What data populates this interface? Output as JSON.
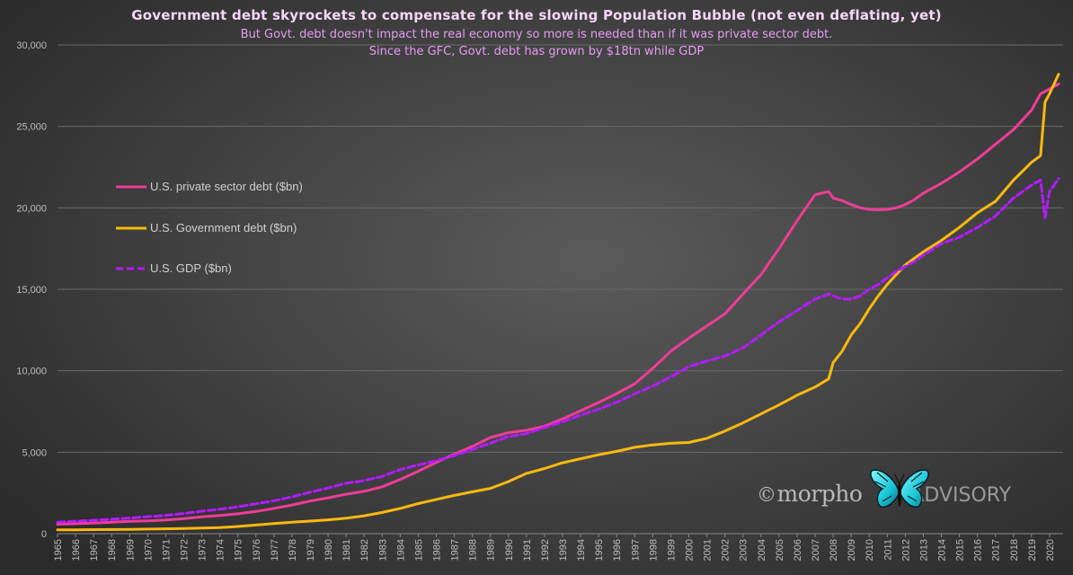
{
  "header": {
    "title": "Government debt skyrockets to compensate for the slowing Population Bubble (not even deflating, yet)",
    "subtitle_line1": "But Govt. debt doesn't impact the real economy so more is needed than if it was private sector debt.",
    "subtitle_line2": "Since the GFC, Govt. debt has grown by $18tn while GDP"
  },
  "watermark": {
    "copyright": "©",
    "brand_main": "morpho",
    "brand_suffix": "ADVISORY",
    "logo_icon": "butterfly-icon"
  },
  "colors": {
    "private_debt": "#ee3d97",
    "government_debt": "#f9b90f",
    "gdp": "#b41bff",
    "gridline": "#6a6a6a",
    "tick_text": "#bdbdbd"
  },
  "chart_data": {
    "type": "line",
    "title": "Government debt skyrockets to compensate for the slowing Population Bubble (not even deflating, yet)",
    "xlabel": "",
    "ylabel": "",
    "xlim": [
      1965,
      2020.75
    ],
    "ylim": [
      0,
      30000
    ],
    "y_ticks": [
      0,
      5000,
      10000,
      15000,
      20000,
      25000,
      30000
    ],
    "y_tick_labels": [
      "0",
      "5,000",
      "10,000",
      "15,000",
      "20,000",
      "25,000",
      "30,000"
    ],
    "x_tick_labels": [
      "1965",
      "1966",
      "1967",
      "1968",
      "1969",
      "1970",
      "1971",
      "1972",
      "1973",
      "1974",
      "1975",
      "1976",
      "1977",
      "1978",
      "1979",
      "1980",
      "1981",
      "1982",
      "1983",
      "1984",
      "1985",
      "1986",
      "1987",
      "1988",
      "1989",
      "1990",
      "1991",
      "1992",
      "1993",
      "1994",
      "1995",
      "1996",
      "1997",
      "1998",
      "1999",
      "2000",
      "2001",
      "2002",
      "2003",
      "2004",
      "2005",
      "2006",
      "2007",
      "2008",
      "2009",
      "2010",
      "2011",
      "2012",
      "2013",
      "2014",
      "2015",
      "2016",
      "2017",
      "2018",
      "2019",
      "2020"
    ],
    "grid": "horizontal",
    "legend_position": "left, upper-middle",
    "series": [
      {
        "name": "U.S. private sector debt ($bn)",
        "style": "solid",
        "x": [
          1965,
          1966,
          1967,
          1968,
          1969,
          1970,
          1971,
          1972,
          1973,
          1974,
          1975,
          1976,
          1977,
          1978,
          1979,
          1980,
          1981,
          1982,
          1983,
          1984,
          1985,
          1986,
          1987,
          1988,
          1989,
          1990,
          1991,
          1992,
          1993,
          1994,
          1995,
          1996,
          1997,
          1998,
          1999,
          2000,
          2001,
          2002,
          2003,
          2004,
          2005,
          2006,
          2007,
          2007.75,
          2008,
          2008.5,
          2009,
          2009.5,
          2010,
          2010.5,
          2011,
          2011.5,
          2012,
          2012.5,
          2013,
          2014,
          2015,
          2016,
          2017,
          2018,
          2019,
          2019.5,
          2020,
          2020.5
        ],
        "y": [
          580,
          610,
          650,
          700,
          760,
          790,
          840,
          920,
          1030,
          1120,
          1220,
          1360,
          1550,
          1760,
          2000,
          2200,
          2420,
          2600,
          2880,
          3330,
          3830,
          4380,
          4880,
          5360,
          5900,
          6200,
          6350,
          6600,
          7050,
          7550,
          8050,
          8600,
          9200,
          10150,
          11200,
          12000,
          12750,
          13500,
          14700,
          15900,
          17500,
          19200,
          20800,
          21000,
          20600,
          20450,
          20200,
          20000,
          19900,
          19880,
          19900,
          20000,
          20200,
          20500,
          20900,
          21500,
          22200,
          23000,
          23900,
          24800,
          26000,
          27000,
          27300,
          27600
        ]
      },
      {
        "name": "U.S. Government debt ($bn)",
        "style": "solid",
        "x": [
          1965,
          1966,
          1967,
          1968,
          1969,
          1970,
          1971,
          1972,
          1973,
          1974,
          1975,
          1976,
          1977,
          1978,
          1979,
          1980,
          1981,
          1982,
          1983,
          1984,
          1985,
          1986,
          1987,
          1988,
          1989,
          1990,
          1991,
          1992,
          1993,
          1994,
          1995,
          1996,
          1997,
          1998,
          1999,
          2000,
          2001,
          2002,
          2003,
          2004,
          2005,
          2006,
          2007,
          2007.75,
          2008,
          2008.5,
          2009,
          2009.5,
          2010,
          2010.5,
          2011,
          2011.5,
          2012,
          2012.5,
          2013,
          2014,
          2015,
          2016,
          2017,
          2018,
          2019,
          2019.5,
          2019.75,
          2020,
          2020.5
        ],
        "y": [
          230,
          235,
          250,
          255,
          260,
          280,
          300,
          320,
          350,
          370,
          440,
          530,
          620,
          700,
          770,
          850,
          950,
          1100,
          1300,
          1550,
          1850,
          2100,
          2350,
          2570,
          2780,
          3200,
          3700,
          4000,
          4350,
          4600,
          4850,
          5050,
          5300,
          5450,
          5550,
          5600,
          5850,
          6300,
          6800,
          7350,
          7900,
          8500,
          9000,
          9500,
          10500,
          11200,
          12200,
          12900,
          13800,
          14600,
          15300,
          15900,
          16500,
          16900,
          17300,
          18000,
          18800,
          19700,
          20400,
          21700,
          22800,
          23200,
          26500,
          27000,
          28200
        ]
      },
      {
        "name": "U.S. GDP ($bn)",
        "style": "dashed",
        "x": [
          1965,
          1966,
          1967,
          1968,
          1969,
          1970,
          1971,
          1972,
          1973,
          1974,
          1975,
          1976,
          1977,
          1978,
          1979,
          1980,
          1981,
          1982,
          1983,
          1984,
          1985,
          1986,
          1987,
          1988,
          1989,
          1990,
          1991,
          1992,
          1993,
          1994,
          1995,
          1996,
          1997,
          1998,
          1999,
          2000,
          2001,
          2002,
          2003,
          2004,
          2005,
          2006,
          2007,
          2007.75,
          2008,
          2008.5,
          2009,
          2009.5,
          2010,
          2010.5,
          2011,
          2011.5,
          2012,
          2012.5,
          2013,
          2014,
          2015,
          2016,
          2017,
          2018,
          2019,
          2019.5,
          2019.75,
          2020,
          2020.5
        ],
        "y": [
          700,
          760,
          820,
          880,
          960,
          1040,
          1120,
          1240,
          1380,
          1500,
          1650,
          1830,
          2020,
          2260,
          2540,
          2800,
          3100,
          3260,
          3520,
          3930,
          4220,
          4480,
          4790,
          5180,
          5560,
          5960,
          6140,
          6520,
          6860,
          7280,
          7640,
          8070,
          8580,
          9060,
          9630,
          10250,
          10600,
          10900,
          11400,
          12200,
          13000,
          13700,
          14400,
          14700,
          14600,
          14400,
          14400,
          14600,
          15000,
          15300,
          15700,
          16100,
          16400,
          16700,
          17100,
          17800,
          18200,
          18800,
          19500,
          20600,
          21400,
          21700,
          19400,
          21000,
          21800
        ]
      }
    ]
  }
}
